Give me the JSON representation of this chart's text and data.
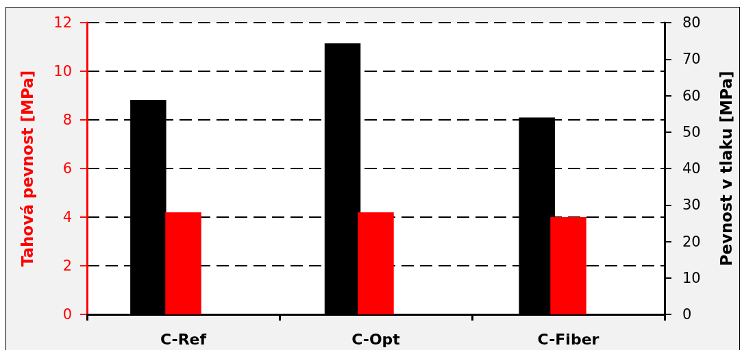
{
  "chart_data": {
    "type": "bar",
    "categories": [
      "C-Ref",
      "C-Opt",
      "C-Fiber"
    ],
    "ylabel": "Tahová pevnost [MPa]",
    "y2label": "Pevnost v tlaku [MPa]",
    "series": [
      {
        "color": "#000000",
        "values": [
          58.8,
          74.3,
          54.0
        ],
        "axis": "y2"
      },
      {
        "color": "#ff0000",
        "values": [
          4.2,
          4.2,
          4.0
        ]
      }
    ],
    "ylim": [
      0,
      12
    ],
    "yticks": [
      0,
      2,
      4,
      6,
      8,
      10,
      12
    ],
    "y2lim": [
      0,
      80
    ],
    "y2ticks": [
      0,
      10,
      20,
      30,
      40,
      50,
      60,
      70,
      80
    ],
    "grid": "y"
  }
}
